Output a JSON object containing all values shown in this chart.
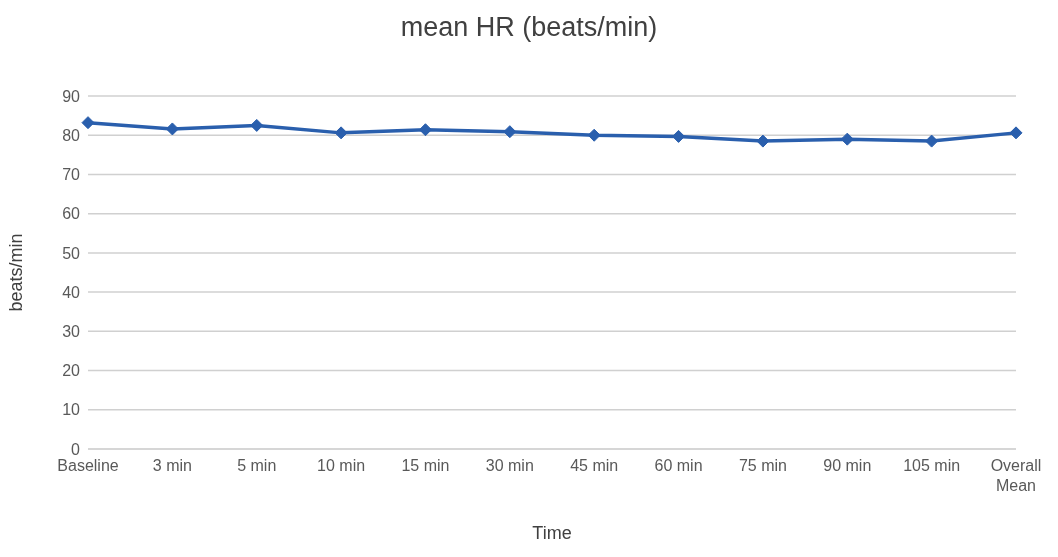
{
  "chart_data": {
    "type": "line",
    "title": "mean HR (beats/min)",
    "xlabel": "Time",
    "ylabel": "beats/min",
    "categories": [
      "Baseline",
      "3 min",
      "5 min",
      "10 min",
      "15 min",
      "30 min",
      "45 min",
      "60 min",
      "75 min",
      "90 min",
      "105 min",
      "Overall Mean"
    ],
    "series": [
      {
        "color": "#2a5fad",
        "values": [
          83.2,
          81.6,
          82.5,
          80.6,
          81.4,
          80.9,
          80.0,
          79.7,
          78.5,
          79.0,
          78.5,
          80.6
        ]
      }
    ],
    "ylim": [
      0,
      90
    ],
    "yticks": [
      0,
      10,
      20,
      30,
      40,
      50,
      60,
      70,
      80,
      90
    ],
    "grid": "y",
    "legend": false,
    "marker": "diamond",
    "line_style": "solid"
  }
}
